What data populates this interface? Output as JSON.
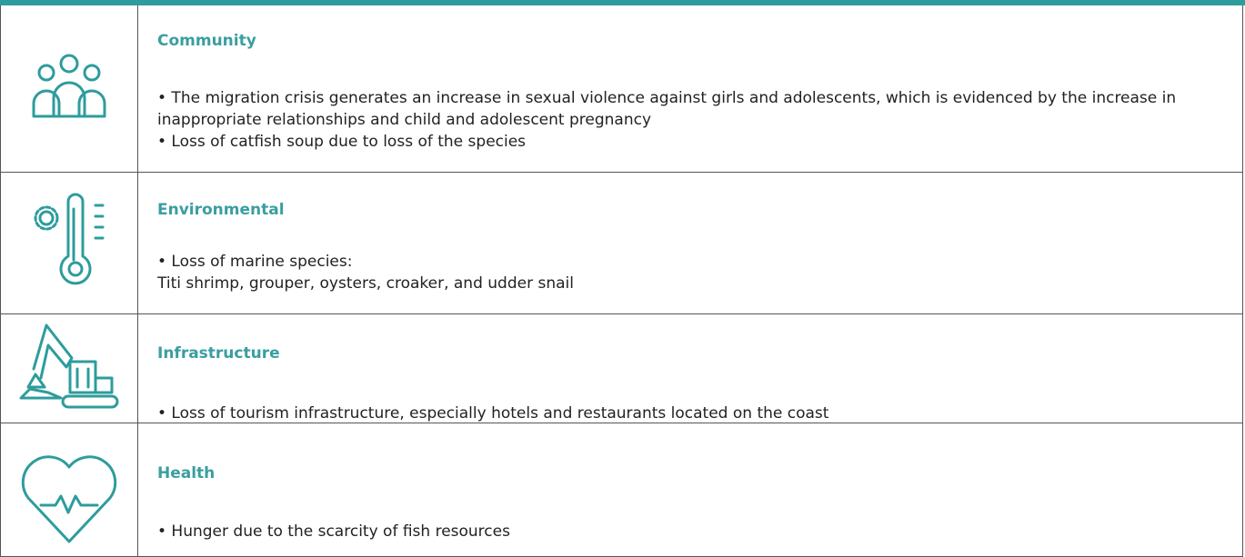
{
  "rows": [
    {
      "title": "Community",
      "items": [
        "• The migration crisis generates an increase in sexual violence against girls and adolescents, which is evidenced by the increase in inappropriate relationships and child and adolescent pregnancy",
        "• Loss of catfish soup due to loss of the species"
      ]
    },
    {
      "title": "Environmental",
      "items": [
        "• Loss of marine species:",
        "Titi shrimp, grouper, oysters, croaker, and udder snail"
      ]
    },
    {
      "title": "Infrastructure",
      "items": [
        "• Loss of tourism infrastructure, especially hotels and restaurants located on the coast"
      ]
    },
    {
      "title": "Health",
      "items": [
        "• Hunger due to the scarcity of fish resources"
      ]
    }
  ]
}
